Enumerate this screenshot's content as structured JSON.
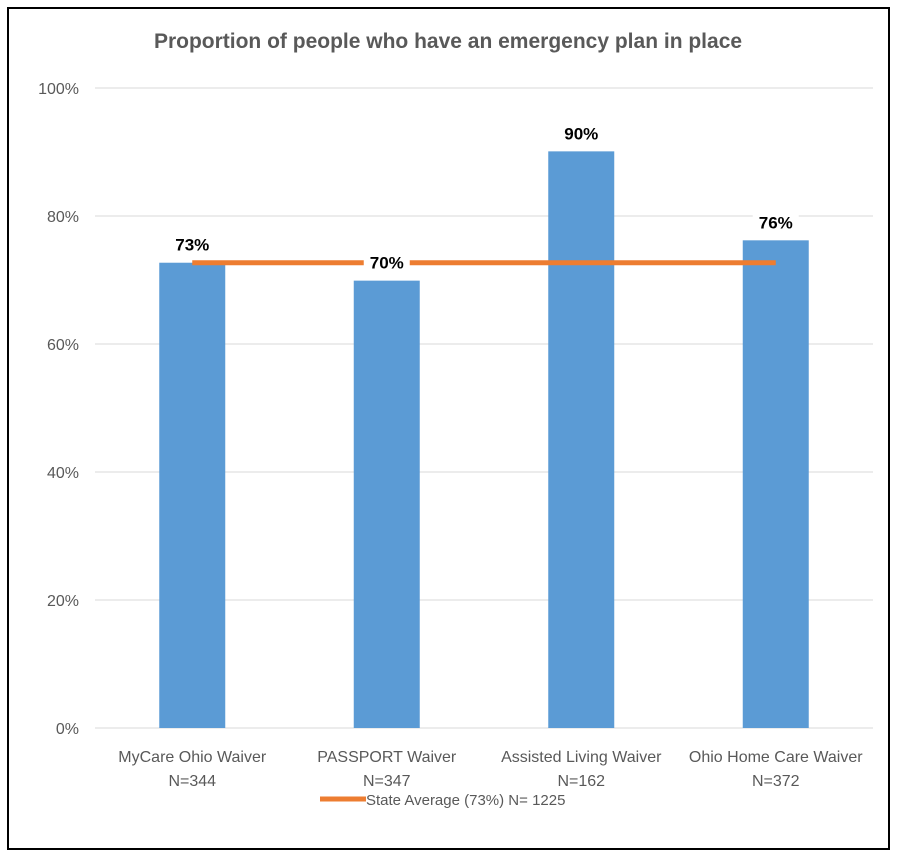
{
  "chart_data": {
    "type": "bar",
    "title": "Proportion of people who have an emergency plan in place",
    "categories": [
      [
        "MyCare Ohio Waiver",
        "N=344"
      ],
      [
        "PASSPORT Waiver",
        "N=347"
      ],
      [
        "Assisted Living Waiver",
        "N=162"
      ],
      [
        "Ohio Home Care Waiver",
        "N=372"
      ]
    ],
    "values": [
      72.7,
      69.9,
      90.1,
      76.2
    ],
    "data_labels": [
      "73%",
      "70%",
      "90%",
      "76%"
    ],
    "reference_line": {
      "name": "State Average (73%) N= 1225",
      "value": 72.7
    },
    "ylim": [
      0,
      100
    ],
    "yticks": [
      0,
      20,
      40,
      60,
      80,
      100
    ],
    "ytick_labels": [
      "0%",
      "20%",
      "40%",
      "60%",
      "80%",
      "100%"
    ],
    "grid": true,
    "legend_position": "bottom",
    "colors": {
      "bar": "#5B9BD5",
      "line": "#ED7D31",
      "grid": "#D9D9D9",
      "text": "#595959"
    }
  }
}
